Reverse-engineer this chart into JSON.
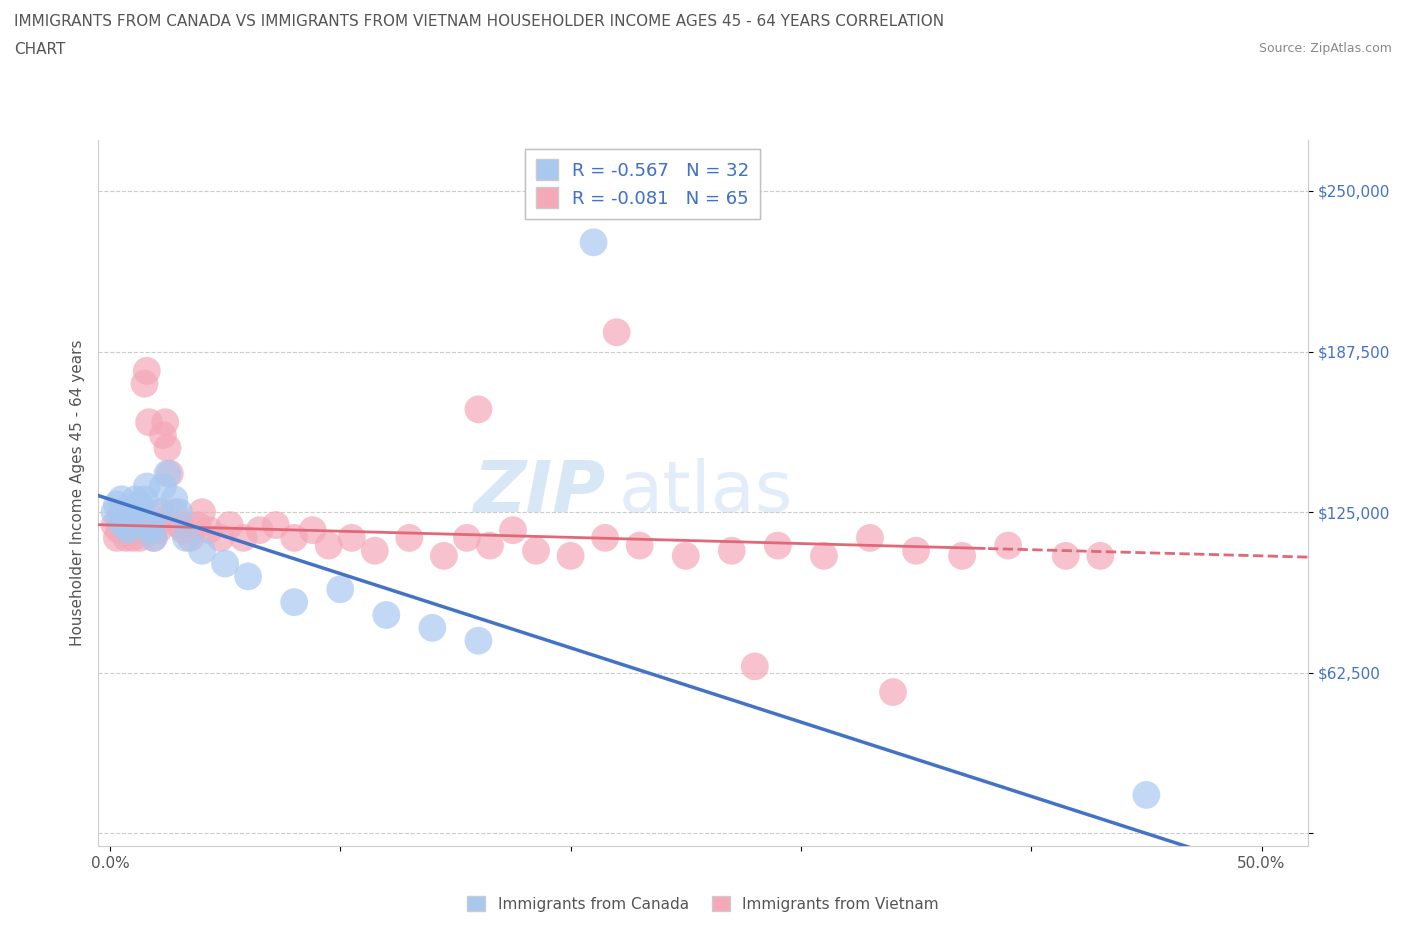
{
  "title_line1": "IMMIGRANTS FROM CANADA VS IMMIGRANTS FROM VIETNAM HOUSEHOLDER INCOME AGES 45 - 64 YEARS CORRELATION",
  "title_line2": "CHART",
  "source": "Source: ZipAtlas.com",
  "ylabel": "Householder Income Ages 45 - 64 years",
  "xlim": [
    -0.005,
    0.52
  ],
  "ylim": [
    -5000,
    270000
  ],
  "ytick_vals": [
    0,
    62500,
    125000,
    187500,
    250000
  ],
  "ytick_labels": [
    "",
    "$62,500",
    "$125,000",
    "$187,500",
    "$250,000"
  ],
  "xtick_vals": [
    0.0,
    0.1,
    0.2,
    0.3,
    0.4,
    0.5
  ],
  "xtick_labels": [
    "0.0%",
    "",
    "",
    "",
    "",
    "50.0%"
  ],
  "canada_color": "#a8c8f0",
  "vietnam_color": "#f4a8b8",
  "canada_R": -0.567,
  "canada_N": 32,
  "vietnam_R": -0.081,
  "vietnam_N": 65,
  "canada_line_color": "#4472c4",
  "vietnam_line_color": "#e06878",
  "label_color": "#4472c4",
  "grid_color": "#cccccc",
  "title_color": "#555555",
  "canada_x": [
    0.002,
    0.003,
    0.004,
    0.005,
    0.006,
    0.007,
    0.008,
    0.009,
    0.01,
    0.011,
    0.013,
    0.015,
    0.016,
    0.017,
    0.018,
    0.019,
    0.021,
    0.023,
    0.025,
    0.028,
    0.03,
    0.033,
    0.04,
    0.05,
    0.06,
    0.08,
    0.1,
    0.12,
    0.14,
    0.16,
    0.21,
    0.45
  ],
  "canada_y": [
    125000,
    128000,
    122000,
    130000,
    120000,
    125000,
    118000,
    120000,
    125000,
    130000,
    128000,
    130000,
    135000,
    120000,
    118000,
    115000,
    125000,
    135000,
    140000,
    130000,
    125000,
    115000,
    110000,
    105000,
    100000,
    90000,
    95000,
    85000,
    80000,
    75000,
    230000,
    15000
  ],
  "vietnam_x": [
    0.002,
    0.003,
    0.004,
    0.005,
    0.006,
    0.007,
    0.008,
    0.009,
    0.01,
    0.011,
    0.012,
    0.013,
    0.014,
    0.015,
    0.016,
    0.017,
    0.018,
    0.019,
    0.02,
    0.021,
    0.022,
    0.023,
    0.024,
    0.025,
    0.026,
    0.028,
    0.03,
    0.032,
    0.035,
    0.038,
    0.04,
    0.043,
    0.048,
    0.052,
    0.058,
    0.065,
    0.072,
    0.08,
    0.088,
    0.095,
    0.105,
    0.115,
    0.13,
    0.145,
    0.155,
    0.165,
    0.175,
    0.185,
    0.2,
    0.215,
    0.23,
    0.25,
    0.27,
    0.29,
    0.31,
    0.33,
    0.35,
    0.37,
    0.39,
    0.415,
    0.22,
    0.28,
    0.16,
    0.34,
    0.43
  ],
  "vietnam_y": [
    120000,
    115000,
    118000,
    125000,
    120000,
    115000,
    118000,
    120000,
    115000,
    118000,
    120000,
    115000,
    118000,
    175000,
    180000,
    160000,
    120000,
    115000,
    120000,
    118000,
    125000,
    155000,
    160000,
    150000,
    140000,
    125000,
    120000,
    118000,
    115000,
    120000,
    125000,
    118000,
    115000,
    120000,
    115000,
    118000,
    120000,
    115000,
    118000,
    112000,
    115000,
    110000,
    115000,
    108000,
    115000,
    112000,
    118000,
    110000,
    108000,
    115000,
    112000,
    108000,
    110000,
    112000,
    108000,
    115000,
    110000,
    108000,
    112000,
    108000,
    195000,
    65000,
    165000,
    55000,
    108000
  ]
}
